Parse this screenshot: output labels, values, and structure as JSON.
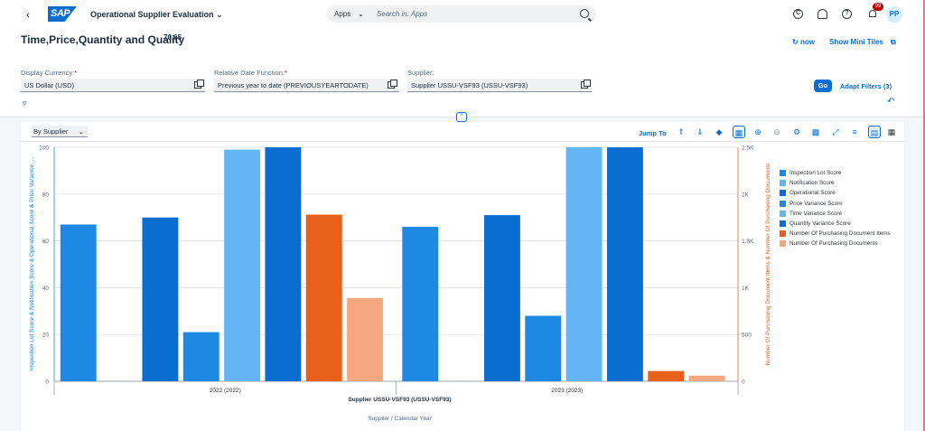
{
  "shell": {
    "back_icon": "back-arrow-icon",
    "logo_text": "SAP",
    "app_title": "Operational Supplier Evaluation",
    "search_scope": "Apps",
    "search_placeholder": "Search in: Apps",
    "notification_count": "99",
    "avatar_initials": "PP"
  },
  "header": {
    "title": "Time,Price,Quantity and Quality",
    "score": "70,65",
    "refresh_label": "now",
    "mini_tiles_label": "Show Mini Tiles"
  },
  "filters": {
    "currency_label": "Display Currency:",
    "currency_value": "US Dollar (USD)",
    "date_label": "Relative Date Function:",
    "date_value": "Previous year to date (PREVIOUSYEARTODATE)",
    "supplier_label": "Supplier:",
    "supplier_value": "Supplier USSU-VSF93 (USSU-VSF93)",
    "required_mark": "*",
    "go_label": "Go",
    "adapt_label": "Adapt Filters (3)"
  },
  "toolbar": {
    "view_by": "By Supplier",
    "jump_to": "Jump To"
  },
  "chart_data": {
    "type": "bar",
    "categories": [
      "2022 (2022)",
      "2023 (2023)"
    ],
    "group_label": "Supplier USSU-VSF93 (USSU-VSF93)",
    "xlabel": "Supplier / Calendar Year",
    "ylabel": "Inspection Lot Score & Notification Score & Operational Score & Price Variance ...",
    "y2label": "Number Of Purchasing Document Items & Number Of Purchasing Documents",
    "ylim": [
      0,
      100
    ],
    "y2lim": [
      0,
      2500
    ],
    "yticks": [
      "0",
      "20",
      "40",
      "60",
      "80",
      "100"
    ],
    "y2ticks": [
      "0",
      "500",
      "1K",
      "1.5K",
      "2K",
      "2.5K"
    ],
    "series": [
      {
        "name": "Inspection Lot Score",
        "axis": "left",
        "color": "#1e88e5",
        "values": [
          67,
          66
        ]
      },
      {
        "name": "Notification Score",
        "axis": "left",
        "color": "#64b5f6",
        "values": [
          null,
          null
        ]
      },
      {
        "name": "Operational Score",
        "axis": "left",
        "color": "#0a6ed1",
        "values": [
          70,
          71
        ]
      },
      {
        "name": "Price Variance Score",
        "axis": "left",
        "color": "#1e88e5",
        "values": [
          21,
          28
        ]
      },
      {
        "name": "Time Variance Score",
        "axis": "left",
        "color": "#64b5f6",
        "values": [
          99,
          100
        ]
      },
      {
        "name": "Quantity Variance Score",
        "axis": "left",
        "color": "#0a6ed1",
        "values": [
          100,
          100
        ]
      },
      {
        "name": "Number Of Purchasing Document Items",
        "axis": "right",
        "color": "#e9601a",
        "values": [
          1780,
          110
        ]
      },
      {
        "name": "Number Of Purchasing Documents",
        "axis": "right",
        "color": "#f6a780",
        "values": [
          890,
          60
        ]
      }
    ]
  }
}
